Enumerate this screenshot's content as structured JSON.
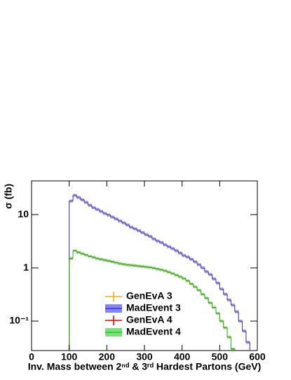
{
  "chart_data": {
    "type": "histogram",
    "x_label": "Inv. Mass between 2ⁿᵈ & 3ʳᵈ Hardest Partons (GeV)",
    "y_label": "σ (fb)",
    "log_y": true,
    "legend": "lower-center",
    "bins": [
      100,
      110,
      120,
      130,
      140,
      150,
      160,
      170,
      180,
      190,
      200,
      210,
      220,
      230,
      240,
      250,
      260,
      270,
      280,
      290,
      300,
      310,
      320,
      330,
      340,
      350,
      360,
      370,
      380,
      390,
      400,
      410,
      420,
      430,
      440,
      450,
      460,
      470,
      480,
      490,
      500,
      510,
      520,
      530,
      540,
      550,
      560,
      570,
      580
    ],
    "series": [
      {
        "name": "GenEvA 3",
        "color": "#ffaa00",
        "style": "line",
        "values": [
          18,
          23,
          21,
          19,
          17,
          15,
          13.5,
          12.5,
          11.5,
          10.5,
          9.8,
          9,
          8.3,
          7.6,
          7,
          6.4,
          5.8,
          5.4,
          5,
          4.6,
          4.2,
          3.9,
          3.5,
          3.2,
          3,
          2.7,
          2.5,
          2.3,
          2.1,
          1.9,
          1.7,
          1.6,
          1.45,
          1.3,
          1.15,
          1,
          0.85,
          0.75,
          0.62,
          0.52,
          0.4,
          0.32,
          0.25,
          0.2,
          0.15,
          0.1,
          0.065,
          0.04
        ]
      },
      {
        "name": "MadEvent 3",
        "color": "#3333ee",
        "style": "band",
        "values": [
          18,
          23,
          21,
          19,
          17,
          15,
          13.5,
          12.5,
          11.5,
          10.5,
          9.8,
          9,
          8.3,
          7.6,
          7,
          6.4,
          5.8,
          5.4,
          5,
          4.6,
          4.2,
          3.9,
          3.5,
          3.2,
          3,
          2.7,
          2.5,
          2.3,
          2.1,
          1.9,
          1.7,
          1.6,
          1.45,
          1.3,
          1.15,
          1,
          0.85,
          0.75,
          0.62,
          0.52,
          0.4,
          0.32,
          0.25,
          0.2,
          0.15,
          0.1,
          0.065,
          0.04
        ]
      },
      {
        "name": "GenEvA 4",
        "color": "#dd0000",
        "style": "line",
        "values": [
          1.5,
          2.1,
          1.95,
          1.85,
          1.75,
          1.65,
          1.58,
          1.5,
          1.45,
          1.4,
          1.35,
          1.3,
          1.25,
          1.2,
          1.17,
          1.14,
          1.12,
          1.1,
          1.08,
          1.06,
          1.04,
          1.02,
          0.99,
          0.95,
          0.92,
          0.88,
          0.83,
          0.78,
          0.73,
          0.68,
          0.63,
          0.57,
          0.5,
          0.44,
          0.38,
          0.32,
          0.27,
          0.22,
          0.18,
          0.14,
          0.1,
          0.075,
          0.05,
          0.03,
          0.02,
          null,
          null,
          null
        ]
      },
      {
        "name": "MadEvent 4",
        "color": "#22cc22",
        "style": "band",
        "values": [
          1.5,
          2.1,
          1.95,
          1.85,
          1.75,
          1.65,
          1.58,
          1.5,
          1.45,
          1.4,
          1.35,
          1.3,
          1.25,
          1.2,
          1.17,
          1.14,
          1.12,
          1.1,
          1.08,
          1.06,
          1.04,
          1.02,
          0.99,
          0.95,
          0.92,
          0.88,
          0.83,
          0.78,
          0.73,
          0.68,
          0.63,
          0.57,
          0.5,
          0.44,
          0.38,
          0.32,
          0.27,
          0.22,
          0.18,
          0.14,
          0.1,
          0.075,
          0.05,
          0.03,
          0.02,
          null,
          null,
          null
        ]
      }
    ],
    "xlim": [
      0,
      600
    ],
    "xticks": [
      0,
      100,
      200,
      300,
      400,
      500,
      600
    ],
    "ylim": [
      0.028,
      43
    ],
    "yticks": [
      {
        "value": 0.1,
        "label": "10⁻¹"
      },
      1,
      10
    ]
  }
}
